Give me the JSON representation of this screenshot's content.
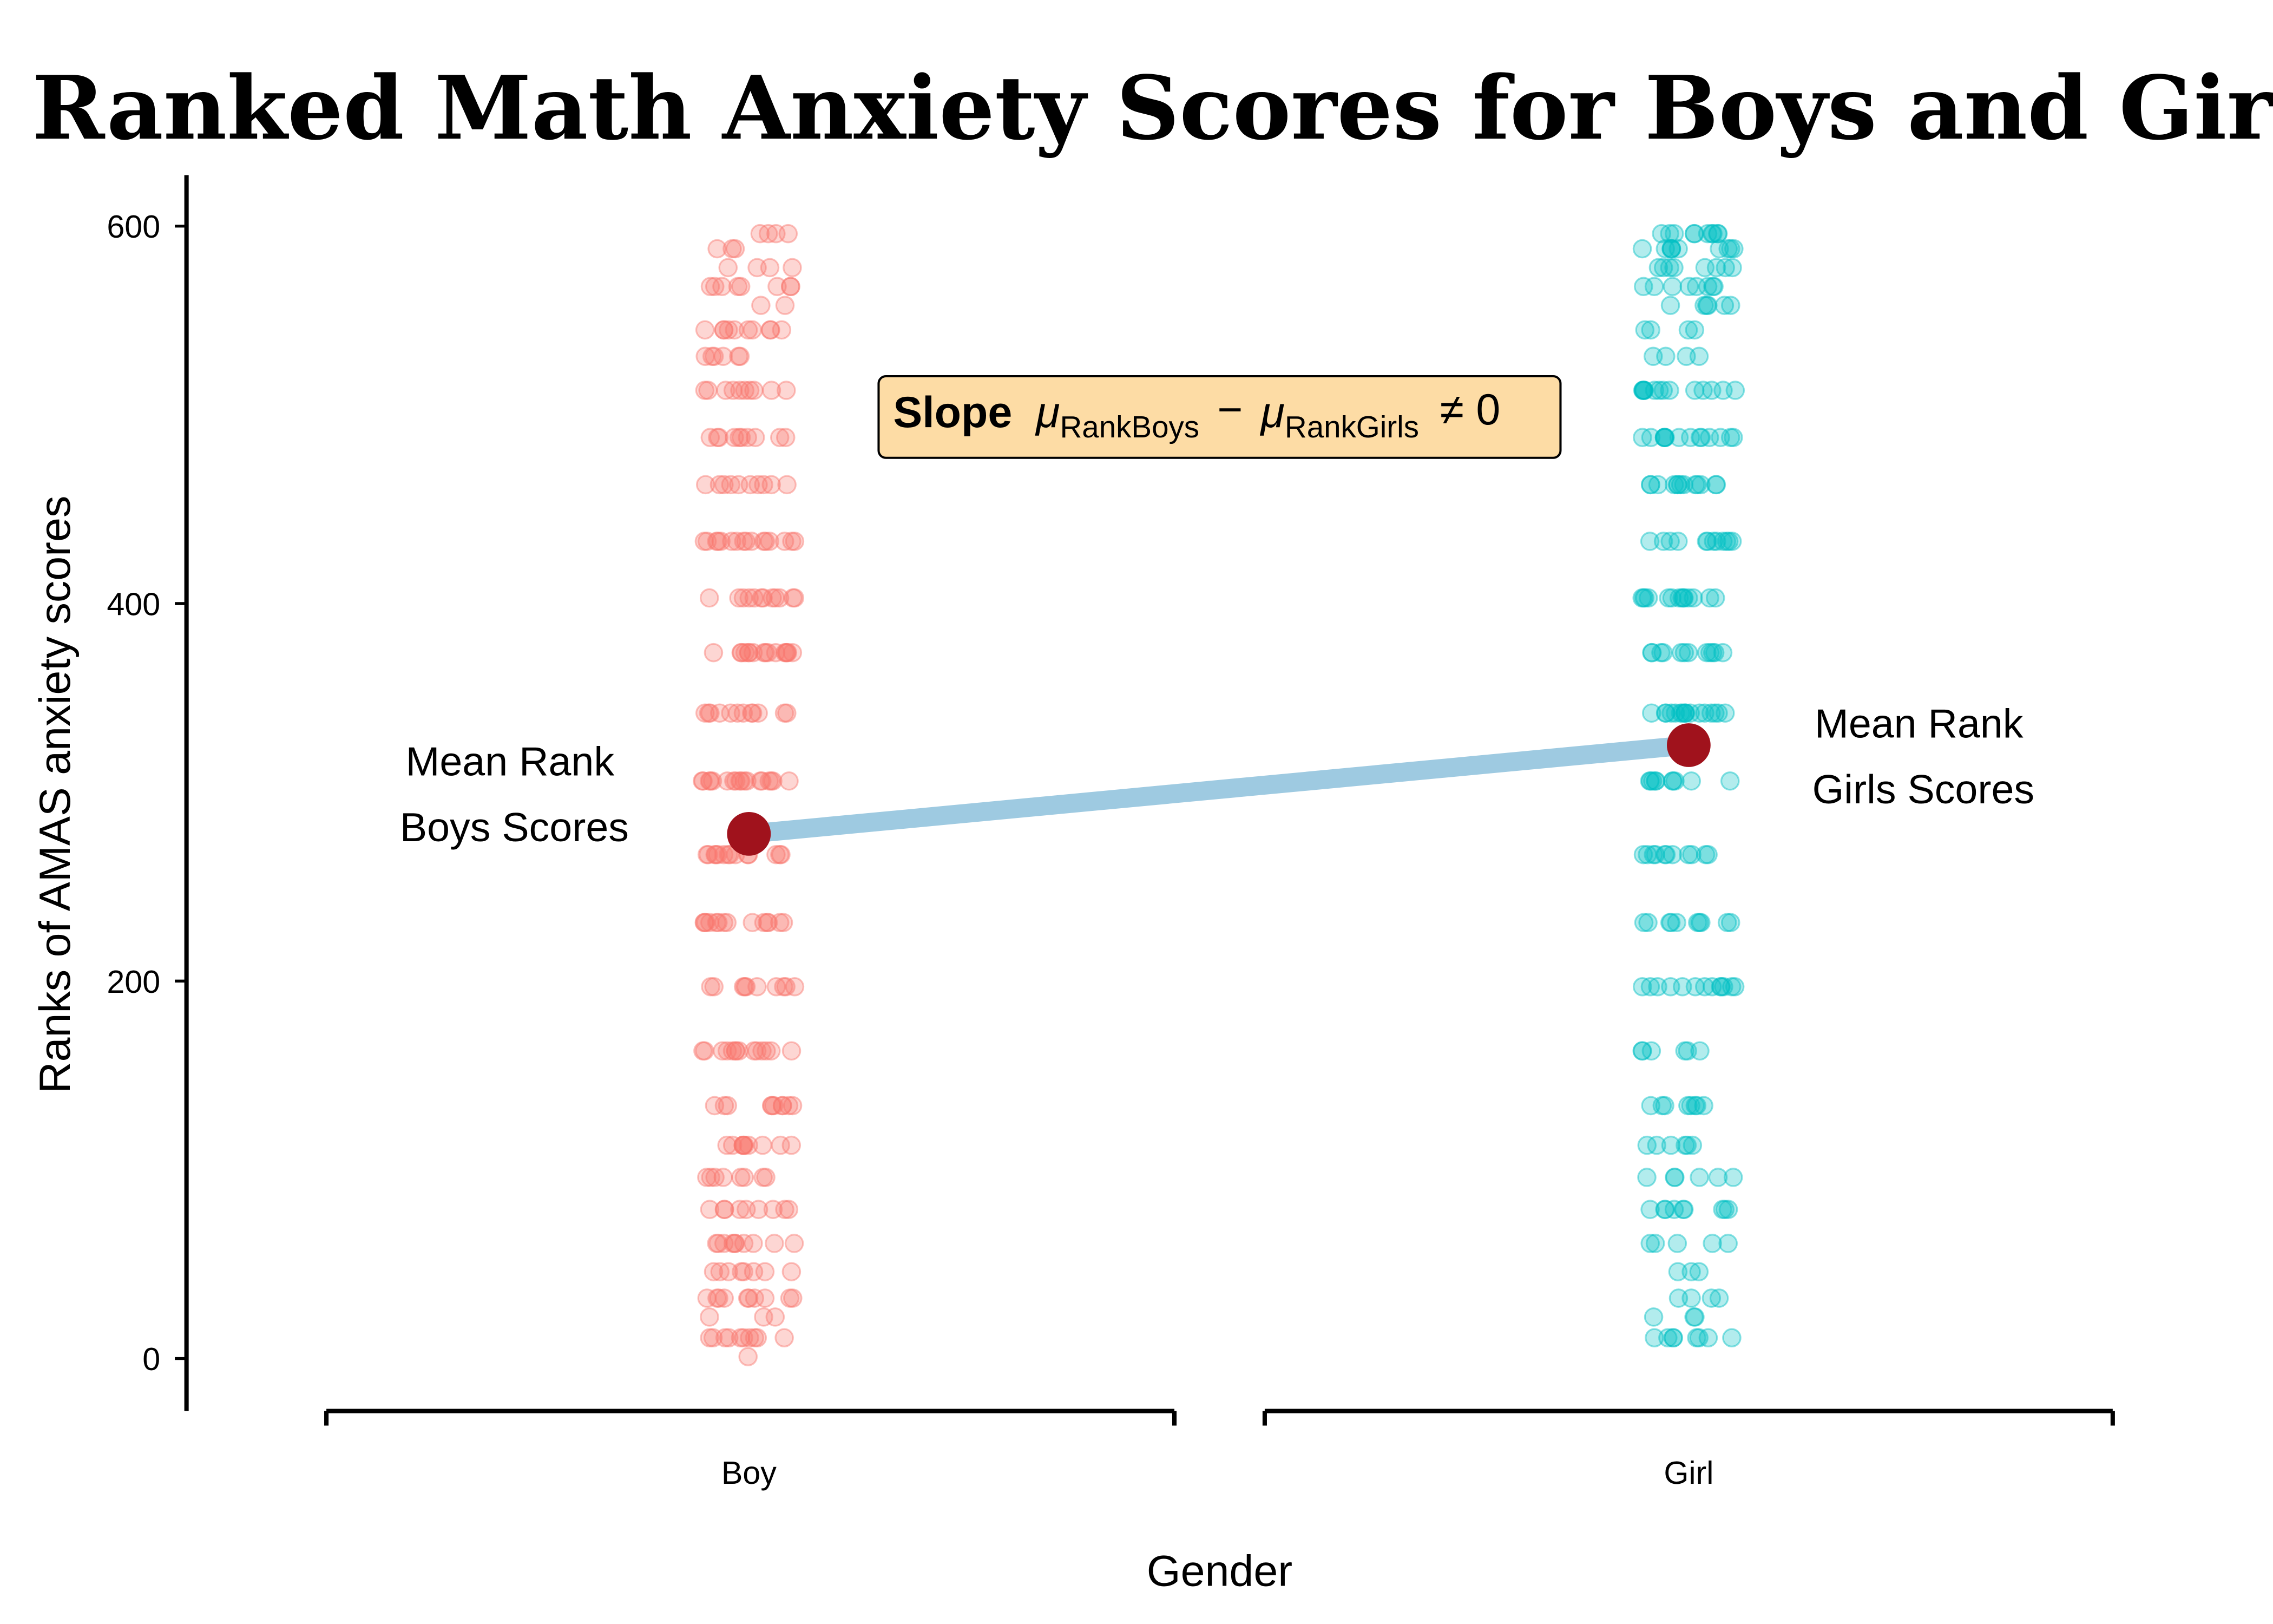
{
  "chart_data": {
    "type": "scatter",
    "title": "Ranked Math Anxiety Scores for Boys and Girls",
    "xlabel": "Gender",
    "ylabel": "Ranks of AMAS anxiety scores",
    "categories": [
      "Boy",
      "Girl"
    ],
    "ylim": [
      -28,
      627
    ],
    "yticks": [
      0,
      200,
      400,
      600
    ],
    "grid": false,
    "rank_levels": [
      1,
      11,
      22,
      32,
      46,
      61,
      79,
      96,
      113,
      134,
      163,
      197,
      231,
      267,
      306,
      342,
      374,
      403,
      433,
      463,
      488,
      513,
      531,
      545,
      558,
      568,
      578,
      588,
      596
    ],
    "series": [
      {
        "category": "Boy",
        "color": "#F8766D",
        "counts": [
          1,
          10,
          3,
          10,
          8,
          10,
          9,
          8,
          10,
          10,
          14,
          10,
          14,
          14,
          18,
          12,
          16,
          12,
          16,
          10,
          10,
          10,
          6,
          10,
          2,
          8,
          4,
          3,
          4
        ],
        "mean_rank": 278
      },
      {
        "category": "Girl",
        "color": "#00BFC4",
        "counts": [
          0,
          8,
          3,
          4,
          3,
          5,
          9,
          6,
          6,
          8,
          6,
          13,
          10,
          11,
          10,
          17,
          12,
          14,
          12,
          13,
          14,
          14,
          4,
          4,
          6,
          8,
          8,
          10,
          10
        ],
        "mean_rank": 325
      }
    ],
    "mean_line_color": "#9ECAE1",
    "mean_point_color": "#A0121C",
    "annotations": {
      "boy_mean_line1": "Mean Rank",
      "boy_mean_line2": "Boys Scores",
      "girl_mean_line1": "Mean Rank",
      "girl_mean_line2": "Girls Scores",
      "slope_bold": "Slope",
      "mu": "μ",
      "sub_boys": "RankBoys",
      "minus": "−",
      "sub_girls": "RankGirls",
      "neq": "≠ 0",
      "box_color": "#FDDCA5"
    }
  }
}
